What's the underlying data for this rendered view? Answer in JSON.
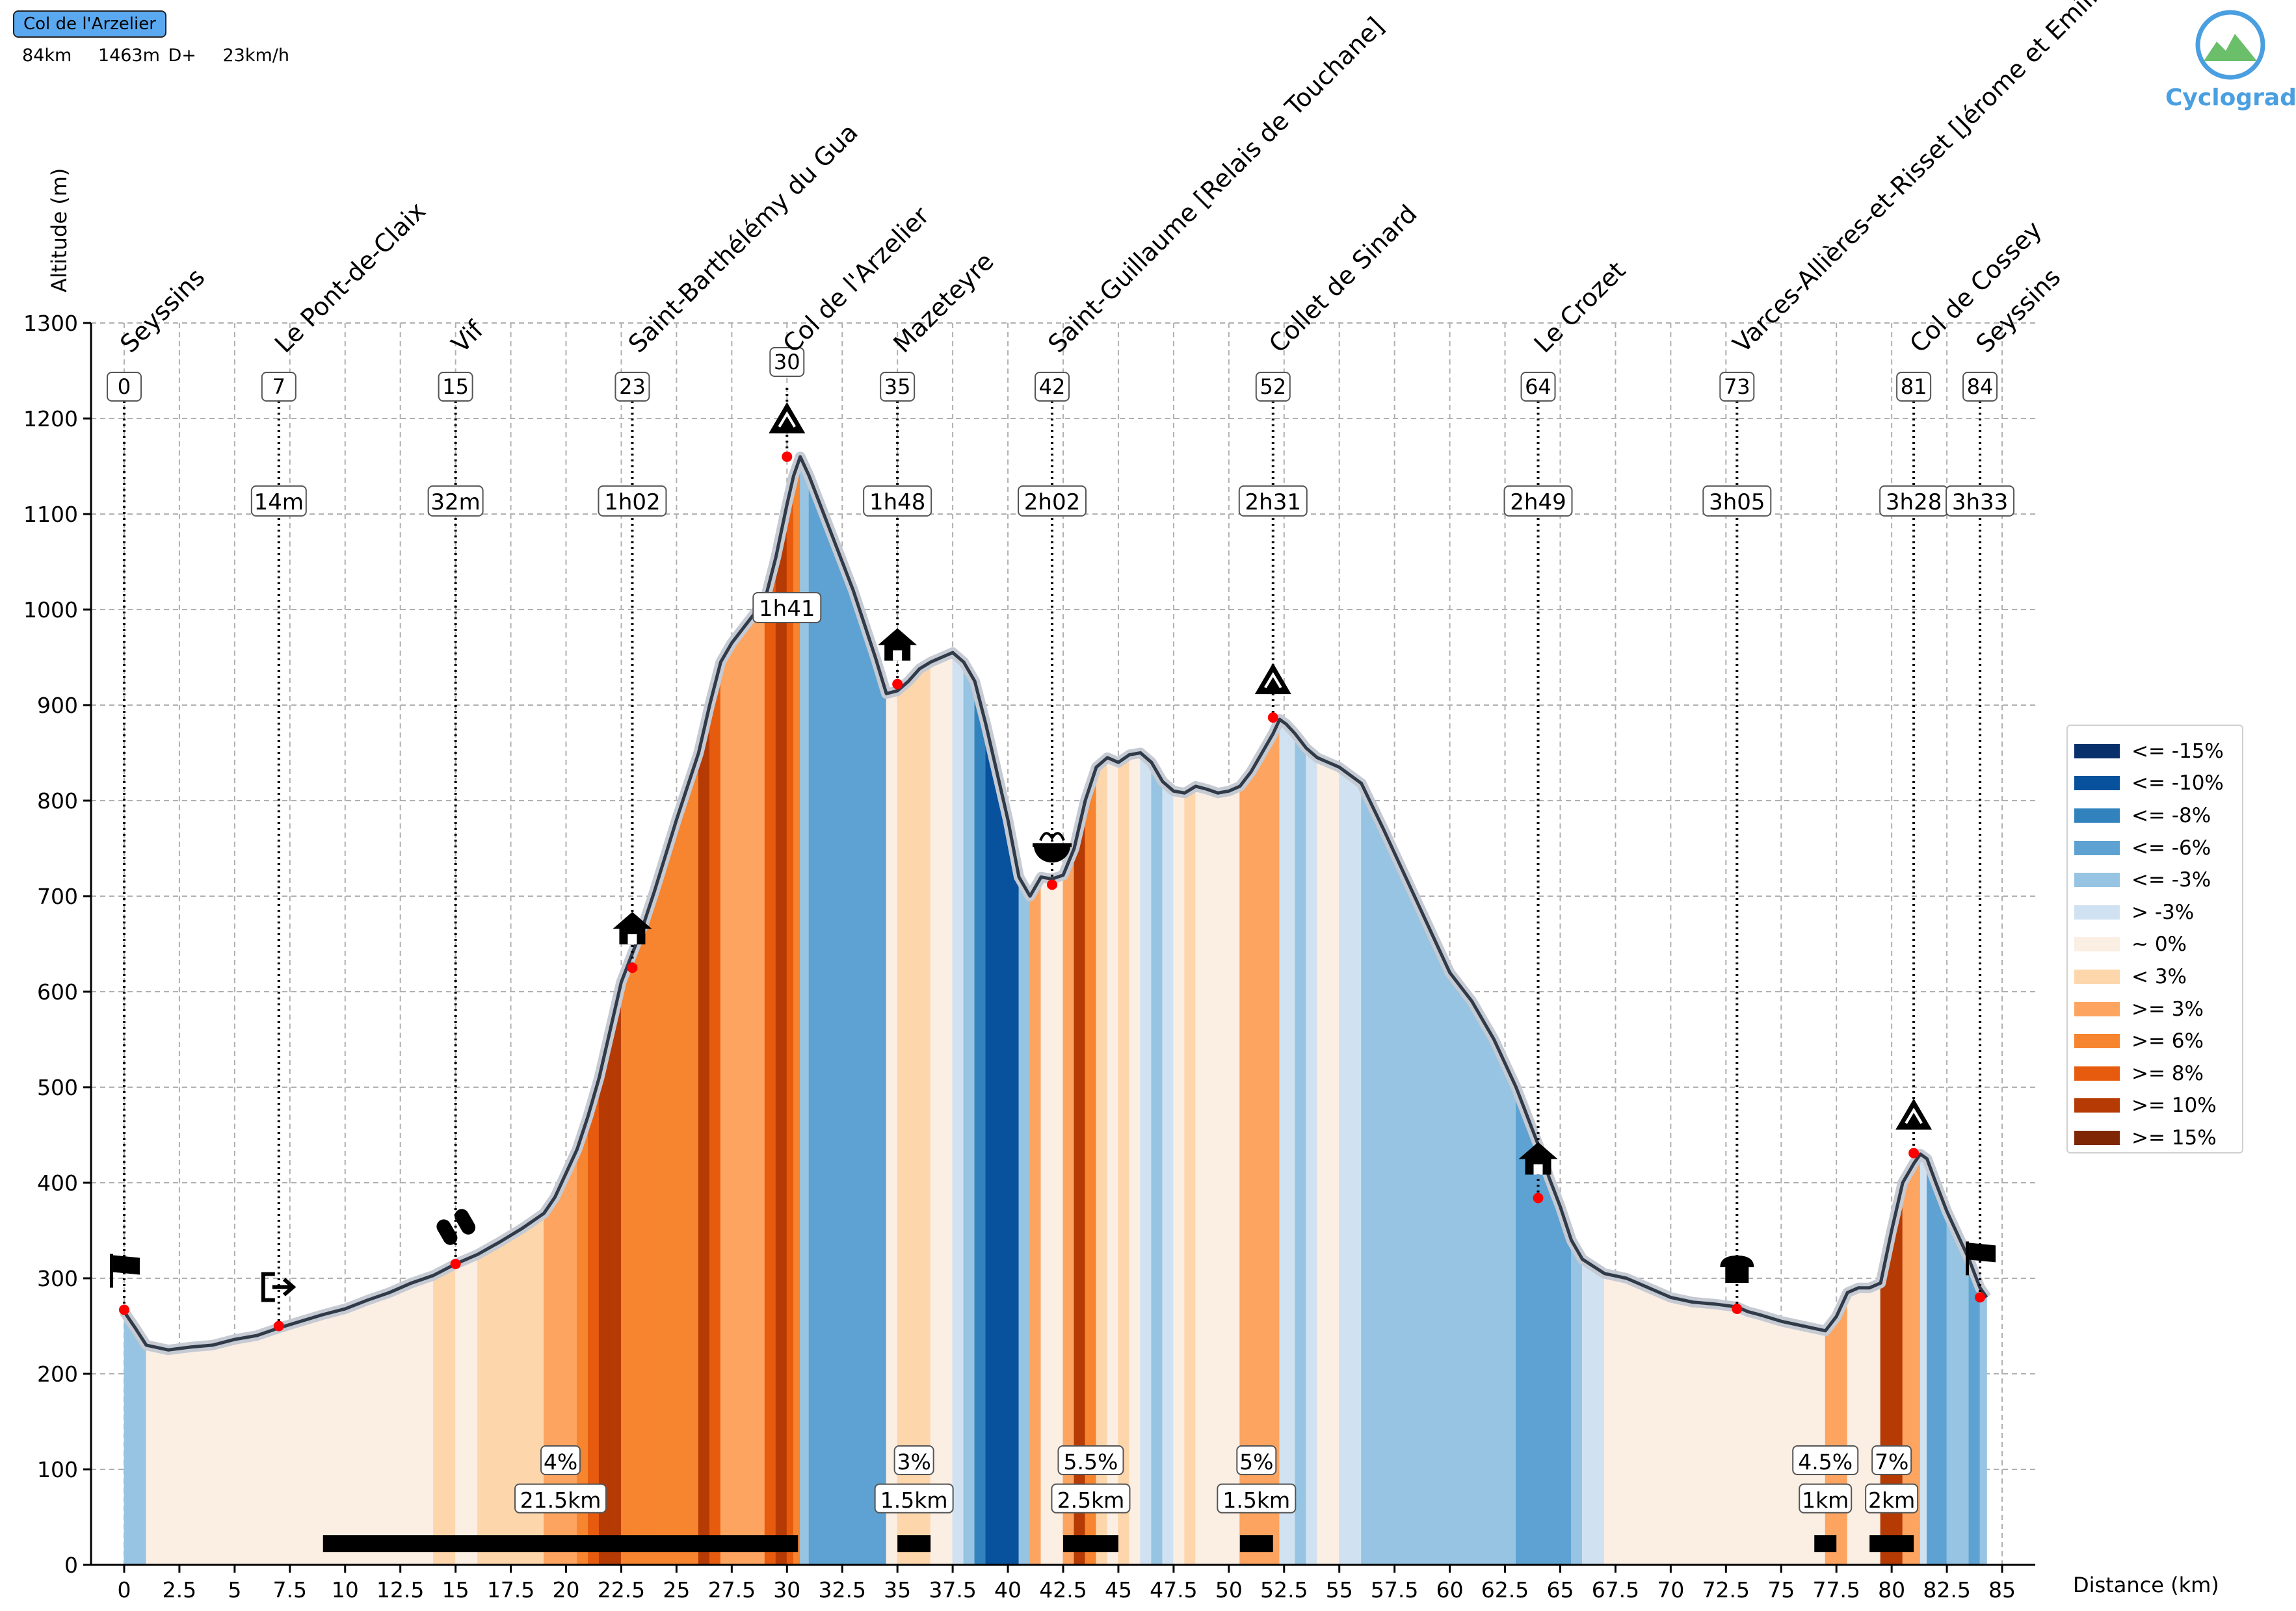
{
  "header": {
    "title": "Col de l'Arzelier",
    "stats": [
      "84km",
      "1463m D+",
      "23km/h"
    ]
  },
  "logo": {
    "text": "Cyclograde",
    "icon": "mountain-logo-icon"
  },
  "chart_data": {
    "type": "area",
    "xlabel": "Distance (km)",
    "ylabel": "Altitude (m)",
    "xlim": [
      -1.5,
      86.5
    ],
    "ylim": [
      0,
      1300
    ],
    "x_ticks": [
      0,
      2.5,
      5,
      7.5,
      10,
      12.5,
      15,
      17.5,
      20,
      22.5,
      25,
      27.5,
      30,
      32.5,
      35,
      37.5,
      40,
      42.5,
      45,
      47.5,
      50,
      52.5,
      55,
      57.5,
      60,
      62.5,
      65,
      67.5,
      70,
      72.5,
      75,
      77.5,
      80,
      82.5,
      85
    ],
    "x_tick_labels": [
      "0",
      "2.5",
      "5",
      "7.5",
      "10",
      "12.5",
      "15",
      "17.5",
      "20",
      "22.5",
      "25",
      "27.5",
      "30",
      "32.5",
      "35",
      "37.5",
      "40",
      "42.5",
      "45",
      "47.5",
      "50",
      "52.5",
      "55",
      "57.5",
      "60",
      "62.5",
      "65",
      "67.5",
      "70",
      "72.5",
      "75",
      "77.5",
      "80",
      "82.5",
      "85"
    ],
    "y_ticks": [
      0,
      100,
      200,
      300,
      400,
      500,
      600,
      700,
      800,
      900,
      1000,
      1100,
      1200,
      1300
    ],
    "grid": true,
    "profile": [
      [
        0,
        265
      ],
      [
        0.5,
        248
      ],
      [
        1,
        230
      ],
      [
        2,
        225
      ],
      [
        3,
        228
      ],
      [
        4,
        230
      ],
      [
        5,
        236
      ],
      [
        6,
        240
      ],
      [
        7,
        248
      ],
      [
        8,
        255
      ],
      [
        9,
        262
      ],
      [
        10,
        268
      ],
      [
        11,
        277
      ],
      [
        12,
        285
      ],
      [
        13,
        295
      ],
      [
        14,
        303
      ],
      [
        15,
        315
      ],
      [
        16,
        325
      ],
      [
        17,
        338
      ],
      [
        18,
        352
      ],
      [
        19,
        368
      ],
      [
        19.5,
        385
      ],
      [
        20,
        410
      ],
      [
        20.5,
        435
      ],
      [
        21,
        470
      ],
      [
        21.5,
        510
      ],
      [
        22,
        560
      ],
      [
        22.5,
        610
      ],
      [
        23,
        640
      ],
      [
        23.5,
        670
      ],
      [
        24,
        705
      ],
      [
        25,
        780
      ],
      [
        26,
        850
      ],
      [
        26.5,
        900
      ],
      [
        27,
        945
      ],
      [
        27.5,
        965
      ],
      [
        28,
        980
      ],
      [
        28.5,
        995
      ],
      [
        29,
        1010
      ],
      [
        29.5,
        1055
      ],
      [
        30,
        1110
      ],
      [
        30.3,
        1140
      ],
      [
        30.6,
        1160
      ],
      [
        31,
        1140
      ],
      [
        31.5,
        1110
      ],
      [
        32,
        1080
      ],
      [
        32.5,
        1050
      ],
      [
        33,
        1020
      ],
      [
        33.5,
        985
      ],
      [
        34,
        950
      ],
      [
        34.5,
        912
      ],
      [
        35,
        915
      ],
      [
        35.5,
        925
      ],
      [
        36,
        938
      ],
      [
        36.5,
        945
      ],
      [
        37,
        950
      ],
      [
        37.5,
        955
      ],
      [
        38,
        945
      ],
      [
        38.5,
        925
      ],
      [
        39,
        880
      ],
      [
        39.5,
        830
      ],
      [
        40,
        780
      ],
      [
        40.5,
        720
      ],
      [
        41,
        700
      ],
      [
        41.5,
        720
      ],
      [
        42,
        718
      ],
      [
        42.5,
        722
      ],
      [
        43,
        750
      ],
      [
        43.5,
        800
      ],
      [
        44,
        835
      ],
      [
        44.5,
        845
      ],
      [
        45,
        840
      ],
      [
        45.5,
        848
      ],
      [
        46,
        850
      ],
      [
        46.5,
        840
      ],
      [
        47,
        820
      ],
      [
        47.5,
        810
      ],
      [
        48,
        808
      ],
      [
        48.5,
        815
      ],
      [
        49,
        812
      ],
      [
        49.5,
        808
      ],
      [
        50,
        810
      ],
      [
        50.5,
        815
      ],
      [
        51,
        830
      ],
      [
        51.5,
        850
      ],
      [
        52,
        870
      ],
      [
        52.3,
        885
      ],
      [
        52.6,
        880
      ],
      [
        53,
        870
      ],
      [
        53.5,
        855
      ],
      [
        54,
        845
      ],
      [
        55,
        835
      ],
      [
        56,
        818
      ],
      [
        57,
        770
      ],
      [
        58,
        720
      ],
      [
        59,
        670
      ],
      [
        60,
        620
      ],
      [
        61,
        590
      ],
      [
        62,
        550
      ],
      [
        63,
        500
      ],
      [
        64,
        440
      ],
      [
        64.5,
        405
      ],
      [
        65,
        375
      ],
      [
        65.5,
        340
      ],
      [
        66,
        320
      ],
      [
        67,
        305
      ],
      [
        68,
        300
      ],
      [
        69,
        290
      ],
      [
        70,
        280
      ],
      [
        71,
        275
      ],
      [
        72,
        273
      ],
      [
        73,
        270
      ],
      [
        73.5,
        265
      ],
      [
        74,
        262
      ],
      [
        75,
        255
      ],
      [
        76,
        250
      ],
      [
        77,
        245
      ],
      [
        77.5,
        260
      ],
      [
        78,
        285
      ],
      [
        78.5,
        290
      ],
      [
        79,
        290
      ],
      [
        79.5,
        295
      ],
      [
        80,
        350
      ],
      [
        80.5,
        400
      ],
      [
        81,
        420
      ],
      [
        81.3,
        430
      ],
      [
        81.6,
        425
      ],
      [
        82,
        400
      ],
      [
        82.5,
        370
      ],
      [
        83,
        345
      ],
      [
        83.5,
        320
      ],
      [
        84,
        290
      ],
      [
        84.3,
        280
      ]
    ],
    "points": [
      {
        "km": 0,
        "name": "Seyssins",
        "time": "",
        "icon": "flag-icon",
        "alt": 267
      },
      {
        "km": 7,
        "name": "Le Pont-de-Claix",
        "time": "14m",
        "icon": "turn-right-icon",
        "alt": 250
      },
      {
        "km": 15,
        "name": "Vif",
        "time": "32m",
        "icon": "pills-icon",
        "alt": 315
      },
      {
        "km": 23,
        "name": "Saint-Barthélémy du Gua",
        "time": "1h02",
        "icon": "house-icon",
        "alt": 625
      },
      {
        "km": 30,
        "name": "Col de l'Arzelier",
        "time": "1h41",
        "icon": "mountain-icon",
        "alt": 1160
      },
      {
        "km": 35,
        "name": "Mazeteyre",
        "time": "1h48",
        "icon": "house-icon",
        "alt": 922
      },
      {
        "km": 42,
        "name": "Saint-Guillaume [Relais de Touchane]",
        "time": "2h02",
        "icon": "food-icon",
        "alt": 712
      },
      {
        "km": 52,
        "name": "Collet de Sinard",
        "time": "2h31",
        "icon": "mountain-icon",
        "alt": 887
      },
      {
        "km": 64,
        "name": "Le Crozet",
        "time": "2h49",
        "icon": "house-icon",
        "alt": 384
      },
      {
        "km": 73,
        "name": "Varces-Allières-et-Risset [Jérome et Emilie]",
        "time": "3h05",
        "icon": "bread-icon",
        "alt": 268
      },
      {
        "km": 81,
        "name": "Col de Cossey",
        "time": "3h28",
        "icon": "mountain-icon",
        "alt": 431
      },
      {
        "km": 84,
        "name": "Seyssins",
        "time": "3h33",
        "icon": "finish-flag-icon",
        "alt": 280
      }
    ],
    "climbs": [
      {
        "start": 9,
        "end": 30.5,
        "grade": "4%",
        "length": "21.5km"
      },
      {
        "start": 35,
        "end": 36.5,
        "grade": "3%",
        "length": "1.5km"
      },
      {
        "start": 42.5,
        "end": 45,
        "grade": "5.5%",
        "length": "2.5km"
      },
      {
        "start": 50.5,
        "end": 52,
        "grade": "5%",
        "length": "1.5km"
      },
      {
        "start": 76.5,
        "end": 77.5,
        "grade": "4.5%",
        "length": "1km"
      },
      {
        "start": 79,
        "end": 81,
        "grade": "7%",
        "length": "2km"
      }
    ],
    "legend": {
      "placement": "right",
      "entries": [
        {
          "label": "<= -15%",
          "color": "#08306b"
        },
        {
          "label": "<= -10%",
          "color": "#08519c"
        },
        {
          "label": "<= -8%",
          "color": "#3182bd"
        },
        {
          "label": "<= -6%",
          "color": "#5da2d2"
        },
        {
          "label": "<= -3%",
          "color": "#96c4e2"
        },
        {
          "label": "> -3%",
          "color": "#d0e2f2"
        },
        {
          "label": "~ 0%",
          "color": "#fbeee3"
        },
        {
          "label": "< 3%",
          "color": "#fdd6ab"
        },
        {
          "label": ">= 3%",
          "color": "#fda461"
        },
        {
          "label": ">= 6%",
          "color": "#f7842e"
        },
        {
          "label": ">= 8%",
          "color": "#e65b0e"
        },
        {
          "label": ">= 10%",
          "color": "#b53a04"
        },
        {
          "label": ">= 15%",
          "color": "#7f2704"
        }
      ]
    }
  }
}
